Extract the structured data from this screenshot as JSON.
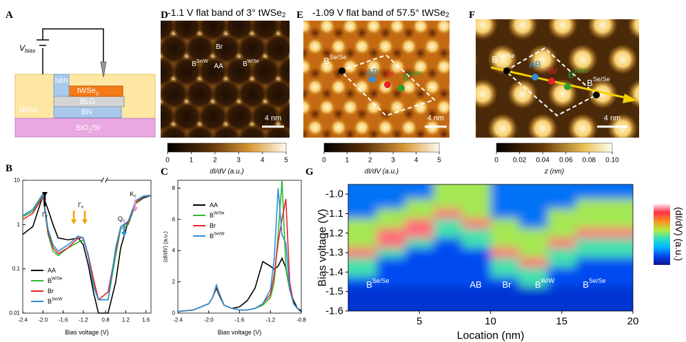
{
  "figure": {
    "panels": {
      "A": "A",
      "B": "B",
      "C": "C",
      "D": "D",
      "E": "E",
      "F": "F",
      "G": "G"
    },
    "schematic": {
      "v": {
        "base": "V",
        "sub": "bias"
      },
      "hbn": "hBN",
      "twse2": {
        "base": "tWSe",
        "sub": "2"
      },
      "blg": "BLG",
      "bn": "BN",
      "niau": "Ni/Au",
      "sio2": {
        "base": "SiO",
        "sub": "2",
        "after": "/Si"
      }
    },
    "images": [
      {
        "title": {
          "base": "-1.1 V flat band of 3° tWSe",
          "sub": "2"
        },
        "labels": [
          {
            "base": "Br",
            "color": "#ffffff"
          },
          {
            "base": "B",
            "sup": "Se/W",
            "color": "#ffffff"
          },
          {
            "base": "AA",
            "color": "#ffffff"
          },
          {
            "base": "B",
            "sup": "W/Se",
            "color": "#ffffff"
          }
        ],
        "scale_bar": "4 nm",
        "colorbar": {
          "lim": [
            0,
            5
          ],
          "ticks": [
            0,
            1,
            2,
            3,
            4,
            5
          ],
          "label": {
            "base": "dI/dV (a.u.)"
          }
        }
      },
      {
        "title": {
          "base": "-1.09 V flat band of 57.5° tWSe",
          "sub": "2"
        },
        "labels": [
          {
            "base": "B",
            "sup": "Se/Se",
            "color": "#ffffff"
          },
          {
            "base": "AB",
            "color": "#2f8fd8"
          },
          {
            "base": "Br",
            "color": "#e8202a"
          },
          {
            "base": "B",
            "sup": "W/W",
            "color": "#2aa02a"
          }
        ],
        "scale_bar": "4 nm",
        "colorbar": {
          "lim": [
            0,
            5
          ],
          "ticks": [
            0,
            1,
            2,
            3,
            4,
            5
          ],
          "label": {
            "base": "dI/dV (a.u.)"
          }
        }
      },
      {
        "labels": [
          {
            "base": "B",
            "sup": "Se/Se",
            "color": "#ffffff"
          },
          {
            "base": "AB",
            "color": "#2f8fd8"
          },
          {
            "base": "Br",
            "color": "#e8202a"
          },
          {
            "base": "B",
            "sup": "W/W",
            "color": "#2aa02a"
          },
          {
            "base": "B",
            "sup": "Se/Se",
            "color": "#ffffff"
          }
        ],
        "scale_bar": "4 nm",
        "colorbar": {
          "lim": [
            0,
            0.1
          ],
          "ticks": [
            0,
            0.02,
            0.04,
            0.06,
            0.08,
            {
              "value": 0.1,
              "label": "0.10"
            }
          ],
          "label": {
            "base": "z (nm)"
          }
        }
      }
    ]
  },
  "chart_data": [
    {
      "type": "line",
      "log_y": true,
      "x_break": [
        -0.8,
        0.8
      ],
      "xlabel": "Bias voltage (V)",
      "xlim": [
        -2.4,
        1.7
      ],
      "xticks": [
        -2.4,
        {
          "value": -2,
          "label": "-2.0"
        },
        -1.6,
        -1.2,
        0.8,
        1.2,
        1.6
      ],
      "ylim": [
        0.01,
        10
      ],
      "yticks": [
        0.01,
        0.1,
        1,
        10
      ],
      "legend": "lower left",
      "x": [
        -2.4,
        -2.2,
        -2.0,
        -1.9,
        -1.8,
        -1.7,
        -1.5,
        -1.3,
        -1.2,
        -1.1,
        -1.0,
        -0.9,
        0.85,
        1.0,
        1.1,
        1.25,
        1.4,
        1.55,
        1.7
      ],
      "series": [
        {
          "name": "AA",
          "color": "#000000",
          "values": [
            0.6,
            0.9,
            4.5,
            2.2,
            1.0,
            0.5,
            0.45,
            0.5,
            0.35,
            0.12,
            0.03,
            0.01,
            0.01,
            0.05,
            0.3,
            1.2,
            3,
            4,
            4.5
          ]
        },
        {
          "name": {
            "base": "B",
            "sup": "W/Se"
          },
          "color": "#2db52d",
          "values": [
            1.5,
            2,
            4.5,
            0.6,
            0.25,
            0.2,
            0.3,
            0.4,
            0.45,
            0.2,
            0.05,
            0.02,
            0.02,
            0.2,
            0.8,
            1,
            3,
            4.2,
            4.5
          ]
        },
        {
          "name": "Br",
          "color": "#e8202a",
          "values": [
            1.3,
            1.8,
            4.3,
            0.7,
            0.3,
            0.22,
            0.3,
            0.5,
            0.5,
            0.2,
            0.06,
            0.02,
            0.03,
            0.25,
            0.9,
            1.1,
            3.2,
            4.3,
            4.6
          ]
        },
        {
          "name": {
            "base": "B",
            "sup": "Se/W"
          },
          "color": "#2a8fd6",
          "values": [
            1.6,
            2.2,
            5,
            0.8,
            0.35,
            0.25,
            0.35,
            0.55,
            0.5,
            0.18,
            0.04,
            0.02,
            0.02,
            0.3,
            0.9,
            1.2,
            3.5,
            4.4,
            4.6
          ]
        }
      ],
      "annotations": [
        {
          "base": "Γ",
          "sub": "z",
          "color": "#000000"
        },
        {
          "base": "Γ",
          "sub": "v",
          "color": "#f5a000"
        },
        {
          "base": "Q",
          "sub": "c",
          "color": "#2a8fd6"
        },
        {
          "base": "K",
          "sub": "c",
          "color": "#f090c0"
        }
      ]
    },
    {
      "type": "line",
      "xlabel": "Bias voltage (V)",
      "ylabel": "(dI/dV) (a.u.)",
      "xlim": [
        -2.4,
        -0.8
      ],
      "xticks": [
        -2.4,
        {
          "value": -2,
          "label": "-2.0"
        },
        -1.6,
        -1.2,
        -0.8
      ],
      "ylim": [
        0,
        8.5
      ],
      "yticks": [
        0,
        2,
        4,
        6,
        8
      ],
      "legend": "upper left",
      "x": [
        -2.4,
        -2.2,
        -2.0,
        -1.95,
        -1.9,
        -1.85,
        -1.8,
        -1.7,
        -1.6,
        -1.5,
        -1.4,
        -1.3,
        -1.2,
        -1.15,
        -1.1,
        -1.05,
        -1.0,
        -0.95,
        -0.9,
        -0.85,
        -0.8
      ],
      "series": [
        {
          "name": "AA",
          "color": "#000000",
          "values": [
            0.1,
            0.2,
            0.6,
            1.0,
            1.6,
            1.0,
            0.5,
            0.3,
            0.4,
            0.8,
            1.6,
            3.3,
            3.0,
            2.8,
            3.0,
            3.5,
            2.9,
            1.5,
            0.8,
            0.3,
            0.1
          ]
        },
        {
          "name": {
            "base": "B",
            "sup": "W/Se"
          },
          "color": "#2db52d",
          "values": [
            0.1,
            0.2,
            0.6,
            1.0,
            1.7,
            1.1,
            0.5,
            0.3,
            0.2,
            0.2,
            0.3,
            0.5,
            1.0,
            2.0,
            5.0,
            8.5,
            3.0,
            1.5,
            0.6,
            0.3,
            0.2
          ]
        },
        {
          "name": "Br",
          "color": "#e8202a",
          "values": [
            0.1,
            0.2,
            0.6,
            1.0,
            1.7,
            1.1,
            0.5,
            0.3,
            0.2,
            0.2,
            0.3,
            0.6,
            1.2,
            2.5,
            4.5,
            6.0,
            7.3,
            2.0,
            0.6,
            0.3,
            0.2
          ]
        },
        {
          "name": {
            "base": "B",
            "sup": "Se/W"
          },
          "color": "#2a8fd6",
          "values": [
            0.1,
            0.2,
            0.6,
            1.0,
            1.8,
            1.1,
            0.5,
            0.3,
            0.2,
            0.2,
            0.3,
            0.6,
            1.5,
            3.5,
            8.0,
            5.0,
            4.5,
            1.5,
            0.6,
            0.3,
            0.2
          ]
        }
      ]
    },
    {
      "type": "heatmap",
      "xlabel": "Location (nm)",
      "ylabel": "Bias voltage (V)",
      "colorbar_label": "(dI/dV) (a.u.)",
      "xlim": [
        0,
        20
      ],
      "xticks": [
        5,
        10,
        15,
        20
      ],
      "ylim": [
        -1.6,
        -0.95
      ],
      "yticks": [
        {
          "value": -1,
          "label": "-1.0"
        },
        -1.1,
        -1.2,
        -1.3,
        -1.4,
        -1.5,
        -1.6
      ],
      "colorscale": [
        "#12128c",
        "#0046f0",
        "#00b4ff",
        "#30e0c0",
        "#b8e840",
        "#ff9020",
        "#ff3048",
        "#fff0f4"
      ],
      "x": [
        1,
        3,
        5,
        7,
        9,
        11,
        13,
        15,
        17,
        19
      ],
      "y": [
        -1.0,
        -1.05,
        -1.1,
        -1.15,
        -1.2,
        -1.25,
        -1.3,
        -1.35,
        -1.4,
        -1.45,
        -1.5,
        -1.55
      ],
      "z": [
        [
          0.2,
          0.2,
          0.2,
          0.55,
          0.55,
          0.2,
          0.2,
          0.2,
          0.2,
          0.2
        ],
        [
          0.2,
          0.2,
          0.55,
          0.55,
          0.55,
          0.2,
          0.2,
          0.2,
          0.55,
          0.55
        ],
        [
          0.2,
          0.55,
          0.55,
          0.9,
          0.55,
          0.2,
          0.2,
          0.55,
          0.55,
          0.55
        ],
        [
          0.55,
          0.55,
          0.9,
          0.45,
          0.9,
          0.55,
          0.2,
          0.55,
          0.55,
          0.55
        ],
        [
          0.55,
          0.9,
          0.9,
          0.45,
          0.45,
          0.55,
          0.55,
          0.55,
          0.9,
          0.9
        ],
        [
          0.55,
          0.9,
          0.45,
          0.15,
          0.45,
          0.55,
          0.55,
          0.9,
          0.45,
          0.45
        ],
        [
          0.9,
          0.45,
          0.15,
          0.15,
          0.15,
          0.9,
          0.55,
          0.45,
          0.45,
          0.45
        ],
        [
          0.45,
          0.15,
          0.15,
          0.15,
          0.15,
          0.45,
          0.9,
          0.45,
          0.15,
          0.15
        ],
        [
          0.45,
          0.15,
          0.15,
          0.15,
          0.15,
          0.45,
          0.45,
          0.15,
          0.15,
          0.15
        ],
        [
          0.15,
          0.15,
          0.15,
          0.15,
          0.15,
          0.15,
          0.45,
          0.15,
          0.15,
          0.15
        ],
        [
          0.1,
          0.1,
          0.1,
          0.1,
          0.1,
          0.1,
          0.1,
          0.1,
          0.1,
          0.1
        ],
        [
          0.1,
          0.1,
          0.1,
          0.1,
          0.1,
          0.1,
          0.1,
          0.1,
          0.1,
          0.1
        ]
      ],
      "labels": [
        {
          "base": "B",
          "sup": "Se/Se"
        },
        {
          "base": "AB"
        },
        {
          "base": "Br"
        },
        {
          "base": "B",
          "sup": "W/W"
        },
        {
          "base": "B",
          "sup": "Se/Se"
        }
      ]
    }
  ]
}
